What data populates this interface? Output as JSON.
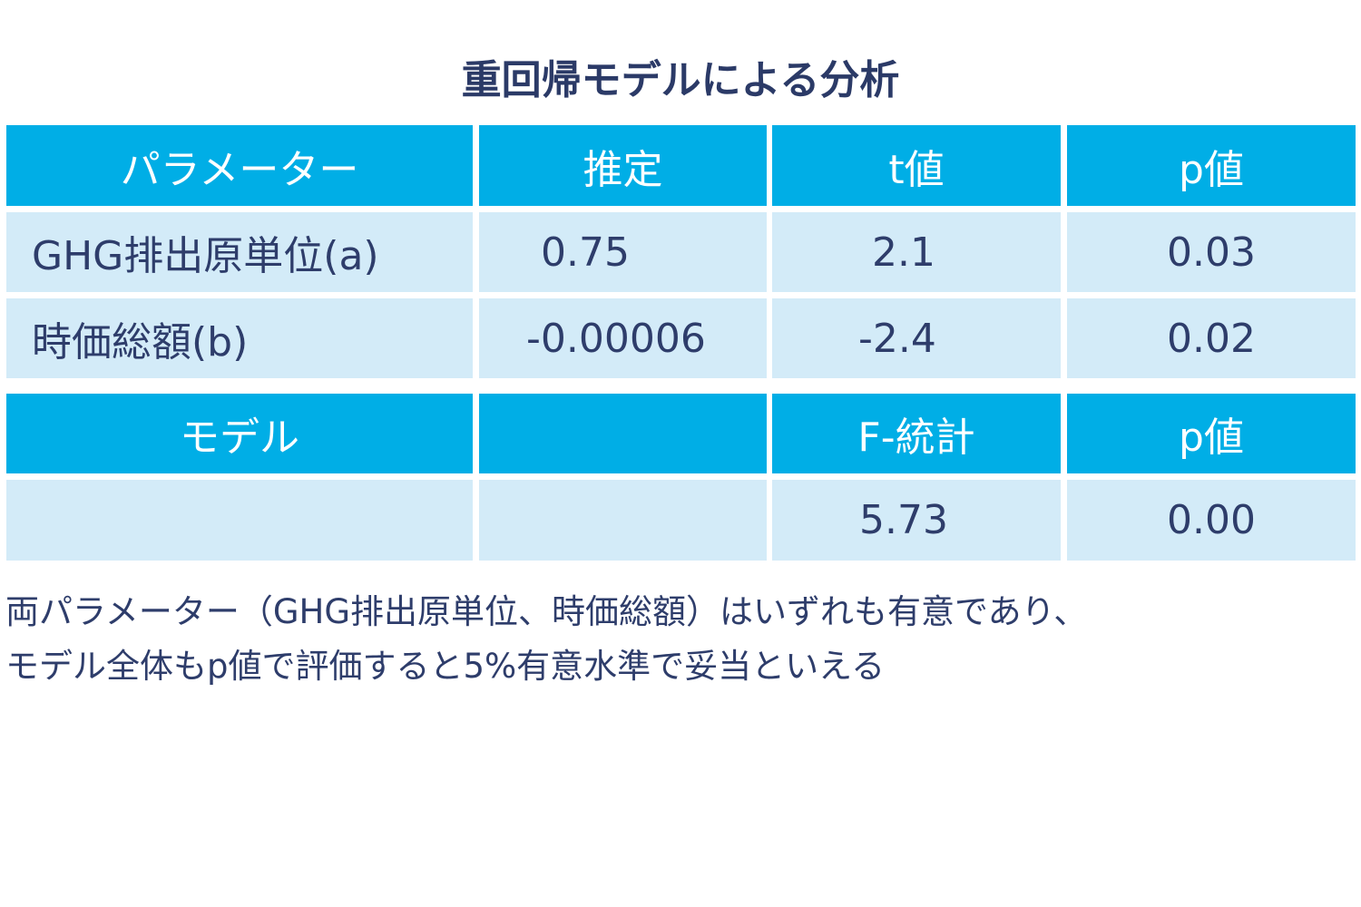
{
  "title": "重回帰モデルによる分析",
  "table1": {
    "headers": [
      "パラメーター",
      "推定",
      "t値",
      "p値"
    ],
    "rows": [
      [
        "GHG排出原単位(a)",
        "0.75",
        "2.1",
        "0.03"
      ],
      [
        "時価総額(b)",
        "-0.00006",
        "-2.4",
        "0.02"
      ]
    ]
  },
  "table2": {
    "headers": [
      "モデル",
      "",
      "F-統計",
      "p値"
    ],
    "rows": [
      [
        "",
        "",
        "5.73",
        "0.00"
      ]
    ]
  },
  "note": {
    "line1": "両パラメーター（GHG排出原単位、時価総額）はいずれも有意であり、",
    "line2": "モデル全体もp値で評価すると5%有意水準で妥当といえる"
  },
  "colors": {
    "header": "#00aee6",
    "cell": "#d3ebf8",
    "text": "#2e3d6b"
  }
}
